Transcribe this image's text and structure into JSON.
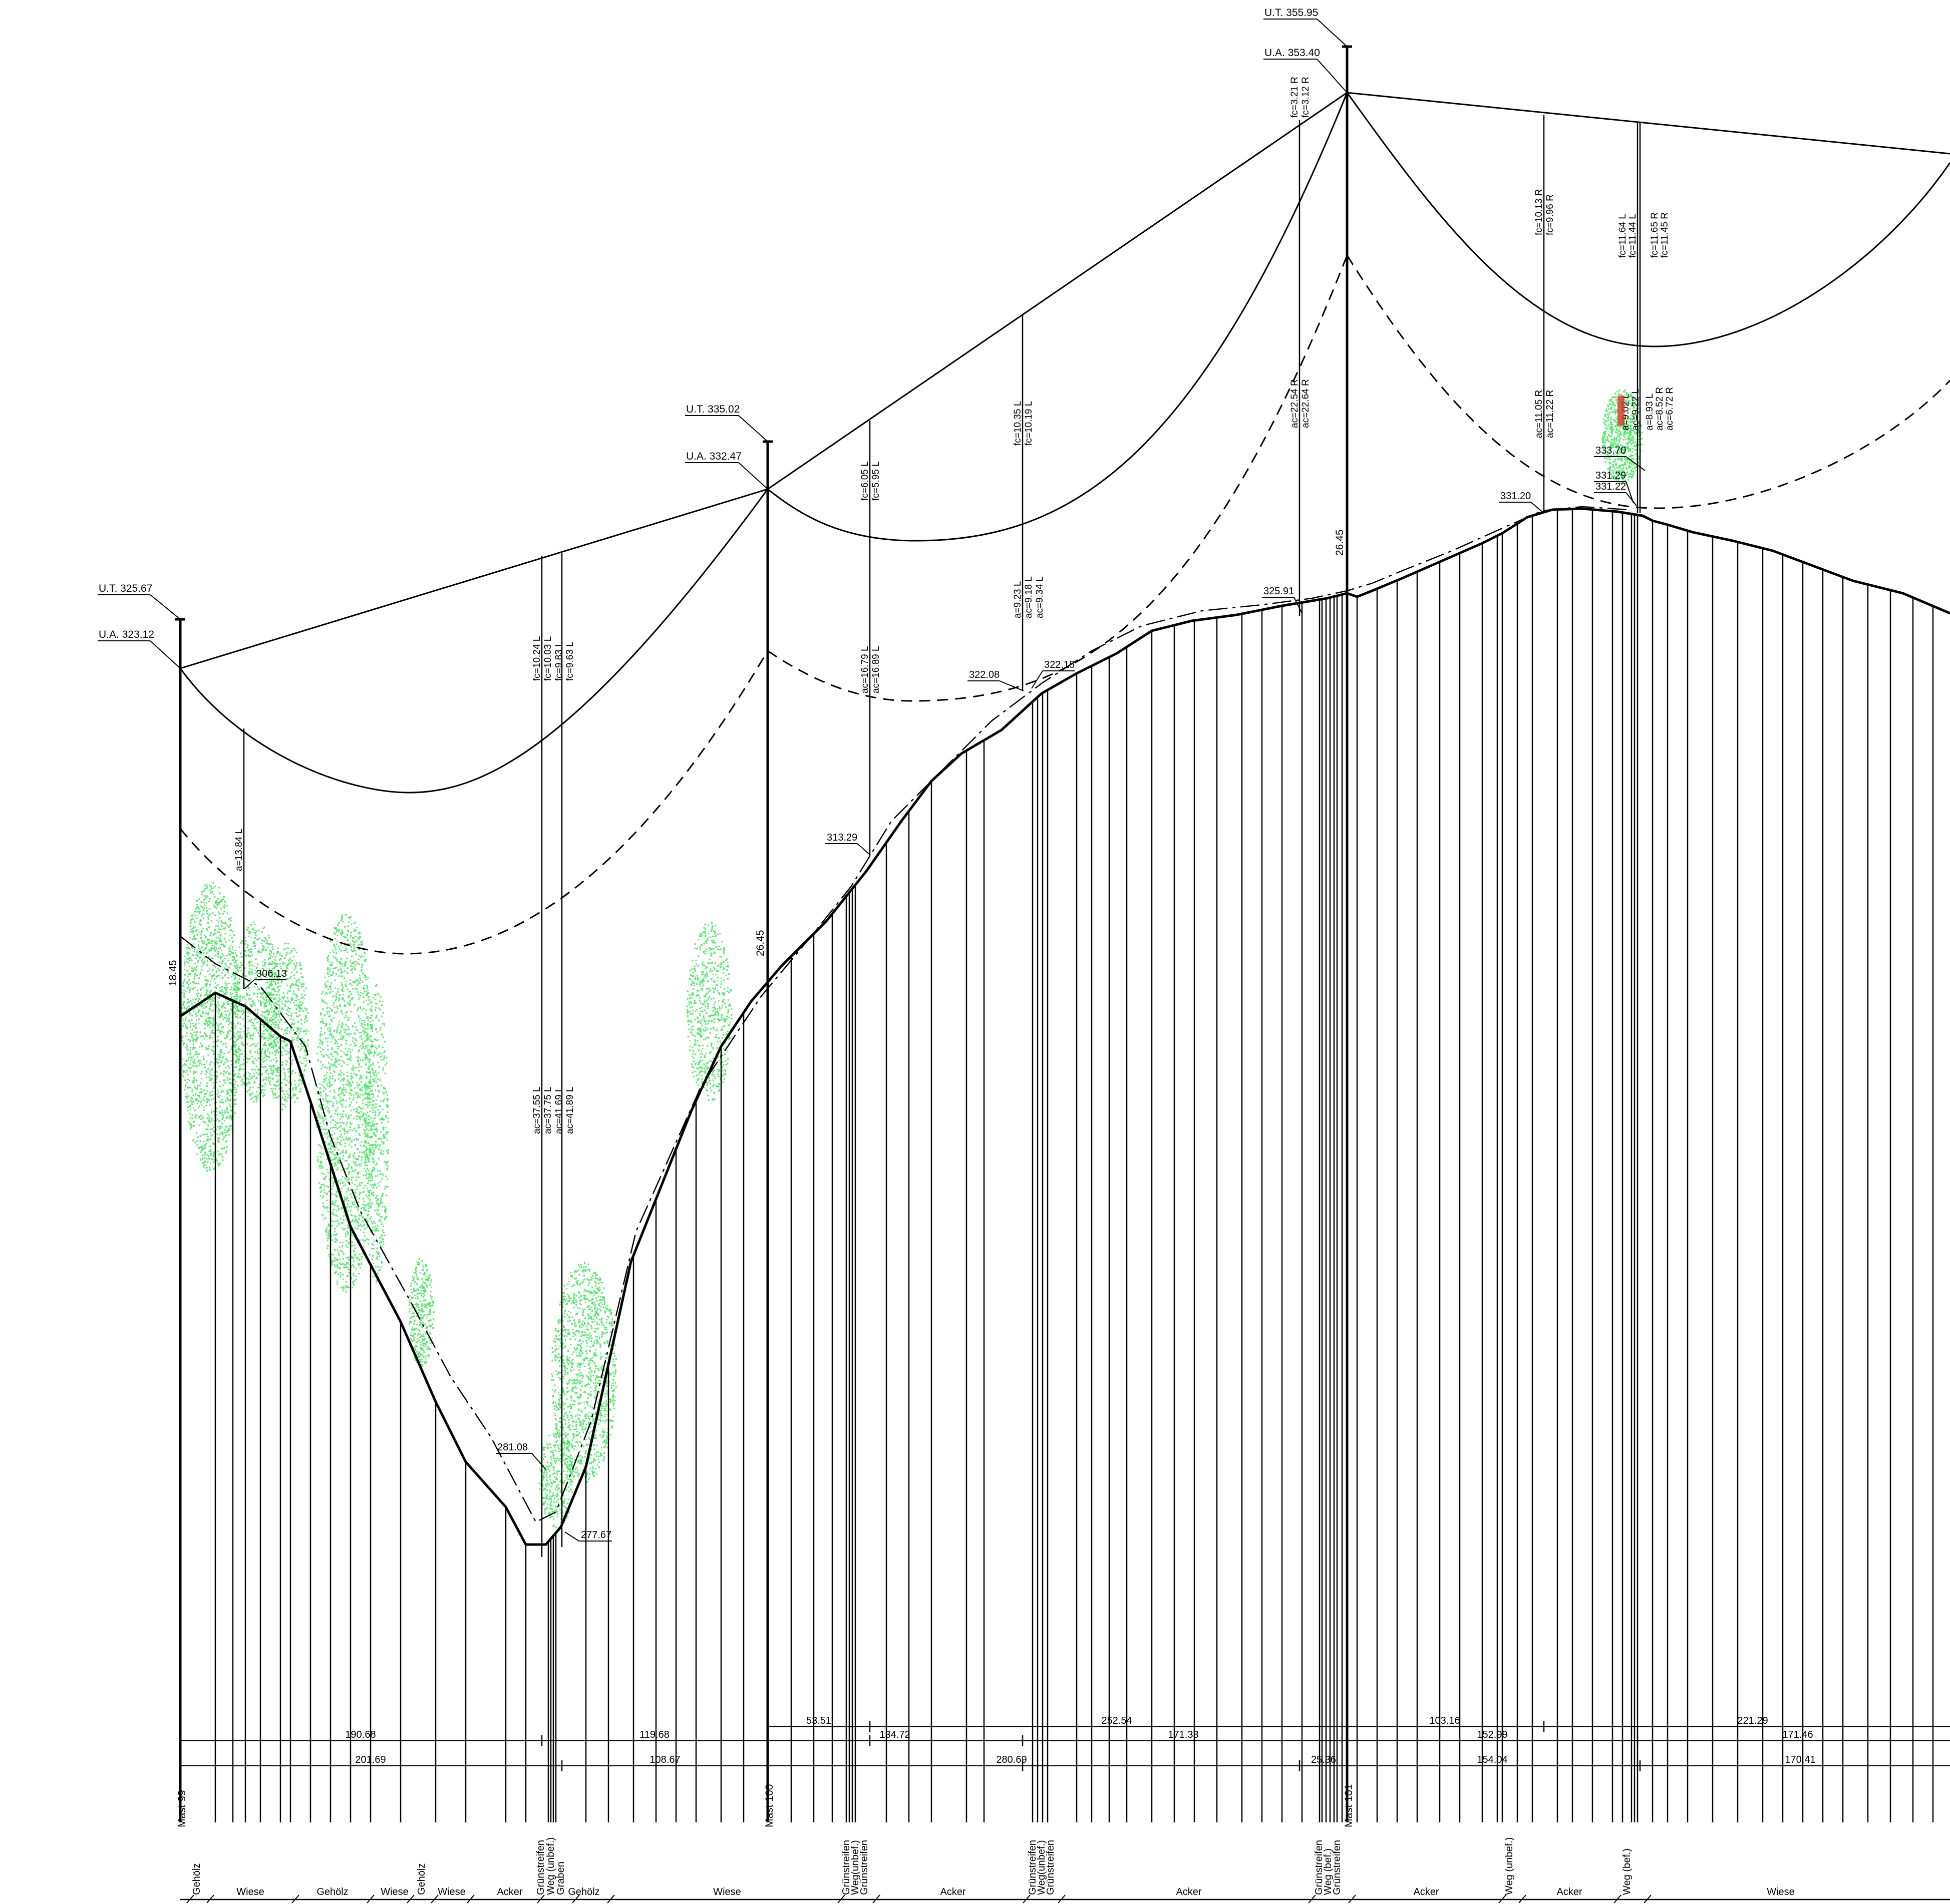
{
  "masts": [
    {
      "name": "Mast 99",
      "ut": "U.T. 325.67",
      "ua": "U.A. 323.12",
      "height": "18.45"
    },
    {
      "name": "Mast 100",
      "ut": "U.T. 335.02",
      "ua": "U.A. 332.47",
      "height": "26.45"
    },
    {
      "name": "Mast 101",
      "ut": "U.T. 355.95",
      "ua": "U.A. 353.40",
      "height": "26.45"
    }
  ],
  "spot_elevations": [
    "306.13",
    "281.08",
    "277.67",
    "313.29",
    "322.08",
    "322.15",
    "325.91",
    "331.20",
    "333.70",
    "331.29",
    "331.22"
  ],
  "clearances": [
    {
      "lines": [
        "a=13.84 L"
      ]
    },
    {
      "lines": [
        "fc=10.24 L",
        "fc=10.03 L",
        "fc=9.83 L",
        "fc=9.63 L"
      ]
    },
    {
      "lines": [
        "ac=37.55 L",
        "ac=37.75 L",
        "ac=41.69 L",
        "ac=41.89 L"
      ]
    },
    {
      "lines": [
        "fc=6.05 L",
        "fc=5.95 L"
      ]
    },
    {
      "lines": [
        "ac=16.79 L",
        "ac=16.89 L"
      ]
    },
    {
      "lines": [
        "fc=10.35 L",
        "fc=10.19 L"
      ]
    },
    {
      "lines": [
        "a=9.23 L",
        "ac=9.18 L",
        "ac=9.34 L"
      ]
    },
    {
      "lines": [
        "fc=3.21 R",
        "fc=3.12 R"
      ]
    },
    {
      "lines": [
        "ac=22.54 R",
        "ac=22.64 R"
      ]
    },
    {
      "lines": [
        "fc=10.13 R",
        "fc=9.96 R"
      ]
    },
    {
      "lines": [
        "ac=11.05 R",
        "ac=11.22 R"
      ]
    },
    {
      "lines": [
        "fc=11.64 L",
        "fc=11.44 L",
        "fc=11.65 R",
        "fc=11.45 R"
      ]
    },
    {
      "lines": [
        "a=9.02 L",
        "ac=9.22 L",
        "a=8.93 L",
        "ac=8.52 R",
        "ac=6.72 R"
      ]
    }
  ],
  "dimensions": {
    "row1": [
      "53.51",
      "252.54",
      "103.16",
      "221.29"
    ],
    "row2": [
      "190.68",
      "119.68",
      "134.72",
      "171.33",
      "152.99",
      "171.46"
    ],
    "row3": [
      "201.69",
      "108.67",
      "280.69",
      "25.36",
      "154.04",
      "170.41"
    ]
  },
  "land_use": [
    "Gehölz",
    "Wiese",
    "Gehölz",
    "Wiese",
    "Gehölz",
    "Wiese",
    "Acker",
    "Grünstreifen",
    "Weg (unbef.)",
    "Graben",
    "Gehölz",
    "Wiese",
    "Grünstreifen",
    "Weg(unbef.)",
    "Grünstreifen",
    "Acker",
    "Grünstreifen",
    "Weg(unbef.)",
    "Grünstreifen",
    "Acker",
    "Grünstreifen",
    "Weg (bef.)",
    "Grünstreifen",
    "Acker",
    "Weg (unbef.)",
    "Acker",
    "Weg (bef.)",
    "Wiese"
  ],
  "colors": {
    "line": "#000000",
    "vegetation": "#33e64d",
    "highlight": "#d9332a"
  }
}
